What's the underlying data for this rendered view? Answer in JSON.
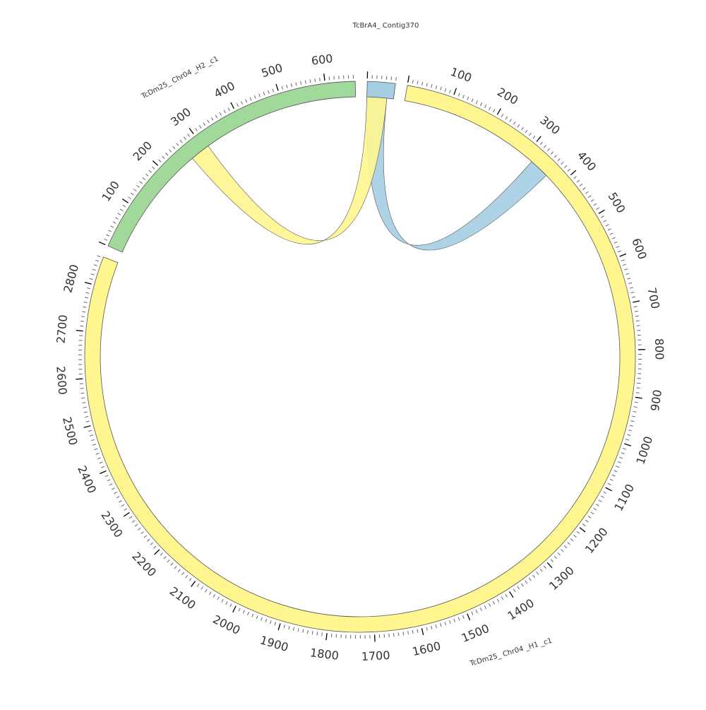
{
  "chart_data": {
    "type": "chord",
    "tick_interval": 100,
    "minor_tick_interval": 10,
    "segments": [
      {
        "id": "contig370",
        "name": "TcBrA4_ Contig370",
        "length": 60,
        "color": "#a6cee3",
        "tick_labels": []
      },
      {
        "id": "h1",
        "name": "TcDm25_ Chr04 _H1 _c1",
        "length": 2862,
        "color": "#fff68f",
        "tick_labels": [
          "100",
          "200",
          "300",
          "400",
          "500",
          "600",
          "700",
          "800",
          "900",
          "1000",
          "1100",
          "1200",
          "1300",
          "1400",
          "1500",
          "1600",
          "1700",
          "1800",
          "1900",
          "2000",
          "2100",
          "2200",
          "2300",
          "2400",
          "2500",
          "2600",
          "2700",
          "2800"
        ]
      },
      {
        "id": "h2",
        "name": "TcDm25_ Chr04 _H2 _c1",
        "length": 664,
        "color": "#a1d99b",
        "tick_labels": [
          "100",
          "200",
          "300",
          "400",
          "500",
          "600"
        ]
      }
    ],
    "links": [
      {
        "from": {
          "segment": "contig370",
          "start": 0,
          "end": 45
        },
        "to": {
          "segment": "h1",
          "start": 320,
          "end": 365
        },
        "color": "#a6cee3"
      },
      {
        "from": {
          "segment": "contig370",
          "start": 0,
          "end": 45
        },
        "to": {
          "segment": "h2",
          "start": 265,
          "end": 310
        },
        "color": "#fff68f"
      }
    ]
  }
}
